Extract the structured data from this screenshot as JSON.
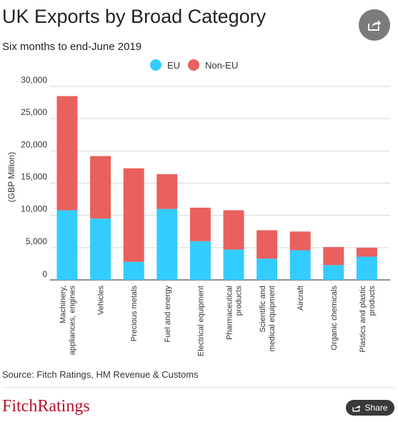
{
  "header": {
    "title": "UK Exports by Broad Category",
    "subtitle": "Six months to end-June 2019",
    "share_icon": "share-icon"
  },
  "legend": {
    "items": [
      {
        "label": "EU",
        "color": "#33ccff"
      },
      {
        "label": "Non-EU",
        "color": "#e8615e"
      }
    ]
  },
  "chart_data": {
    "type": "bar",
    "stacked": true,
    "categories": [
      [
        "Machinery,",
        "appliances, engines"
      ],
      [
        "Vehicles"
      ],
      [
        "Precious metals"
      ],
      [
        "Fuel and energy"
      ],
      [
        "Electrical equipment"
      ],
      [
        "Pharmaceutical",
        "products"
      ],
      [
        "Scientific and",
        "medical equipment"
      ],
      [
        "Aircraft"
      ],
      [
        "Organic chemicals"
      ],
      [
        "Plastics and plastic",
        "products"
      ]
    ],
    "series": [
      {
        "name": "EU",
        "color": "#33ccff",
        "values": [
          10800,
          9500,
          2800,
          11000,
          6000,
          4700,
          3300,
          4600,
          2300,
          3600
        ]
      },
      {
        "name": "Non-EU",
        "color": "#e8615e",
        "values": [
          17700,
          9700,
          14500,
          5400,
          5200,
          6100,
          4400,
          2900,
          2800,
          1400
        ]
      }
    ],
    "ylabel": "(GBP Million)",
    "ylim": [
      0,
      30000
    ],
    "yticks": [
      0,
      5000,
      10000,
      15000,
      20000,
      25000,
      30000
    ],
    "ytick_labels": [
      "0",
      "5,000",
      "10,000",
      "15,000",
      "20,000",
      "25,000",
      "30,000"
    ],
    "grid": true,
    "legend_position": "top-center"
  },
  "footer": {
    "source": "Source: Fitch Ratings, HM Revenue & Customs",
    "logo": "FitchRatings",
    "share_label": "Share"
  }
}
